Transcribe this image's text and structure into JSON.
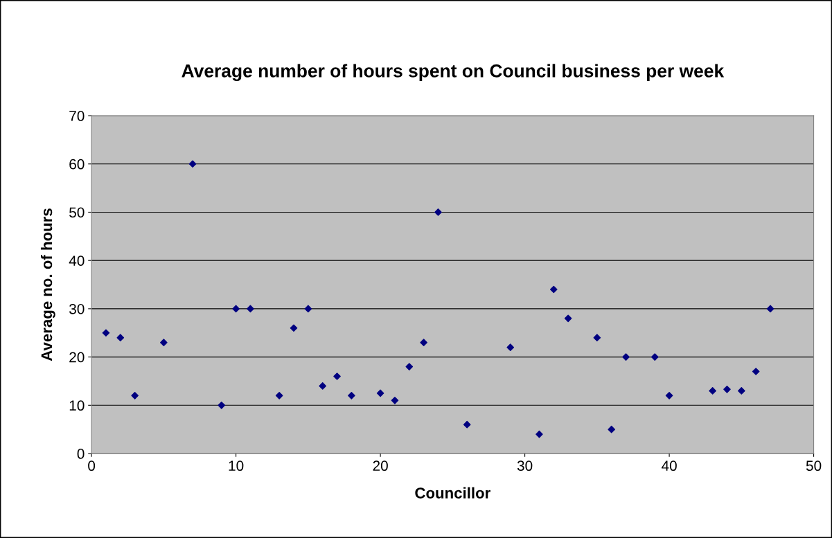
{
  "chart_data": {
    "type": "scatter",
    "title": "Average number of hours spent on Council business per week",
    "xlabel": "Councillor",
    "ylabel": "Average no. of hours",
    "x": [
      1,
      2,
      3,
      5,
      7,
      9,
      10,
      11,
      13,
      14,
      15,
      16,
      17,
      18,
      20,
      21,
      22,
      23,
      24,
      26,
      29,
      31,
      32,
      33,
      35,
      36,
      37,
      39,
      40,
      43,
      44,
      45,
      46,
      47
    ],
    "values": [
      25,
      24,
      12,
      23,
      60,
      10,
      30,
      30,
      12,
      26,
      30,
      14,
      16,
      12,
      12.5,
      11,
      18,
      23,
      50,
      6,
      22,
      4,
      34,
      28,
      24,
      5,
      20,
      20,
      12,
      13,
      13.3,
      13,
      17,
      30
    ],
    "color": "#000080",
    "marker": "diamond",
    "xlim": [
      0,
      50
    ],
    "xticks": [
      0,
      10,
      20,
      30,
      40,
      50
    ],
    "ylim": [
      0,
      70
    ],
    "yticks": [
      0,
      10,
      20,
      30,
      40,
      50,
      60,
      70
    ],
    "grid": "y",
    "legend": false
  }
}
